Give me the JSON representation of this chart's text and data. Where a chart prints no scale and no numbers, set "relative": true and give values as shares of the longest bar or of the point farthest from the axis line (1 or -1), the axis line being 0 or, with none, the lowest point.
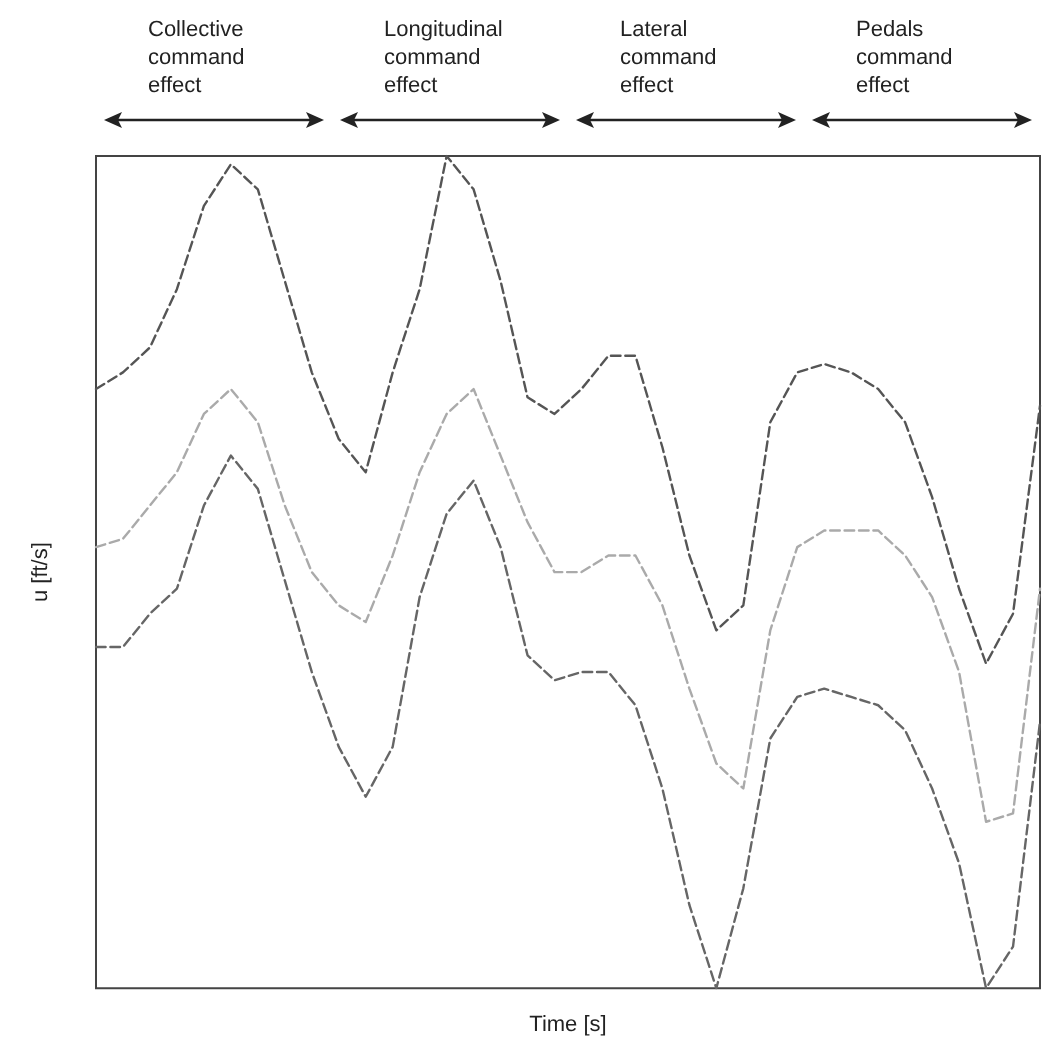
{
  "chart_data": {
    "type": "line",
    "relative": true,
    "xlabel": "Time [s]",
    "ylabel": "u [ft/s]",
    "annotations": [
      "Collective command effect",
      "Longitudinal command effect",
      "Lateral command effect",
      "Pedals command effect"
    ],
    "categories": [
      null,
      null,
      null,
      null,
      null,
      null,
      null,
      null,
      null,
      null,
      null,
      null,
      null,
      null,
      null,
      null,
      null,
      null,
      null,
      null,
      null,
      null,
      null,
      null,
      null,
      null,
      null,
      null,
      null,
      null,
      null,
      null,
      null,
      null,
      null,
      null
    ],
    "series": [
      {
        "color": "#555555",
        "values": [
          0.72,
          0.74,
          0.77,
          0.84,
          0.94,
          0.99,
          0.96,
          0.85,
          0.74,
          0.66,
          0.62,
          0.74,
          0.84,
          1,
          0.96,
          0.85,
          0.71,
          0.69,
          0.72,
          0.76,
          0.76,
          0.65,
          0.52,
          0.43,
          0.46,
          0.68,
          0.74,
          0.75,
          0.74,
          0.72,
          0.68,
          0.59,
          0.48,
          0.39,
          0.45,
          0.7
        ]
      },
      {
        "color": "#aaaaaa",
        "values": [
          0.53,
          0.54,
          0.58,
          0.62,
          0.69,
          0.72,
          0.68,
          0.58,
          0.5,
          0.46,
          0.44,
          0.52,
          0.62,
          0.69,
          0.72,
          0.64,
          0.56,
          0.5,
          0.5,
          0.52,
          0.52,
          0.46,
          0.36,
          0.27,
          0.24,
          0.43,
          0.53,
          0.55,
          0.55,
          0.55,
          0.52,
          0.47,
          0.38,
          0.2,
          0.21,
          0.48
        ]
      },
      {
        "color": "#666666",
        "values": [
          0.41,
          0.41,
          0.45,
          0.48,
          0.58,
          0.64,
          0.6,
          0.49,
          0.38,
          0.29,
          0.23,
          0.29,
          0.47,
          0.57,
          0.61,
          0.53,
          0.4,
          0.37,
          0.38,
          0.38,
          0.34,
          0.24,
          0.1,
          0,
          0.12,
          0.3,
          0.35,
          0.36,
          0.35,
          0.34,
          0.31,
          0.24,
          0.15,
          0,
          0.05,
          0.32
        ]
      }
    ],
    "line_style": "dashed",
    "marker": "none",
    "grid": false
  }
}
